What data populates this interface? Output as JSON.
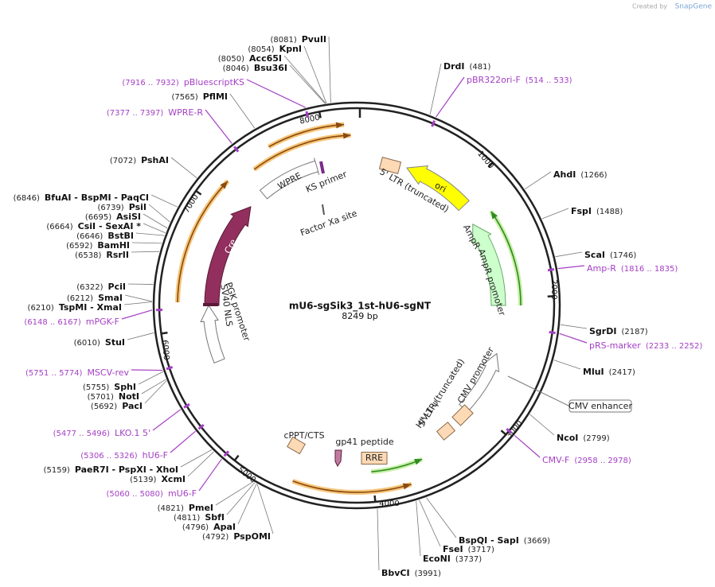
{
  "watermark": {
    "prefix": "Created by",
    "brand": "SnapGene"
  },
  "map": {
    "title": "mU6-sgSik3_1st-hU6-sgNT",
    "length": "8249 bp",
    "ticks": [
      1000,
      2000,
      3000,
      4000,
      5000,
      6000,
      7000,
      8000
    ]
  },
  "enzymes": [
    {
      "position": "(8081)",
      "name": "PvuII"
    },
    {
      "position": "(8054)",
      "name": "KpnI"
    },
    {
      "position": "(8050)",
      "name": "Acc65I"
    },
    {
      "position": "(8046)",
      "name": "Bsu36I"
    },
    {
      "position": "(7565)",
      "name": "PflMI"
    },
    {
      "position": "(7072)",
      "name": "PshAI"
    },
    {
      "position": "(6846)",
      "name": "BfuAI - BspMI - PaqCI"
    },
    {
      "position": "(6739)",
      "name": "PsiI"
    },
    {
      "position": "(6695)",
      "name": "AsiSI"
    },
    {
      "position": "(6664)",
      "name": "CsiI - SexAI *"
    },
    {
      "position": "(6646)",
      "name": "BstBI"
    },
    {
      "position": "(6592)",
      "name": "BamHI"
    },
    {
      "position": "(6538)",
      "name": "RsrII"
    },
    {
      "position": "(6322)",
      "name": "PciI"
    },
    {
      "position": "(6212)",
      "name": "SmaI"
    },
    {
      "position": "(6210)",
      "name": "TspMI - XmaI"
    },
    {
      "position": "(6010)",
      "name": "StuI"
    },
    {
      "position": "(5755)",
      "name": "SphI"
    },
    {
      "position": "(5701)",
      "name": "NotI"
    },
    {
      "position": "(5692)",
      "name": "PacI"
    },
    {
      "position": "(5159)",
      "name": "PaeR7I - PspXI - XhoI"
    },
    {
      "position": "(5139)",
      "name": "XcmI"
    },
    {
      "position": "(4821)",
      "name": "PmeI"
    },
    {
      "position": "(4811)",
      "name": "SbfI"
    },
    {
      "position": "(4796)",
      "name": "ApaI"
    },
    {
      "position": "(4792)",
      "name": "PspOMI"
    },
    {
      "position": "(481)",
      "name": "DrdI"
    },
    {
      "position": "(1266)",
      "name": "AhdI"
    },
    {
      "position": "(1488)",
      "name": "FspI"
    },
    {
      "position": "(1746)",
      "name": "ScaI"
    },
    {
      "position": "(2187)",
      "name": "SgrDI"
    },
    {
      "position": "(2417)",
      "name": "MluI"
    },
    {
      "position": "(2799)",
      "name": "NcoI"
    },
    {
      "position": "(3669)",
      "name": "BspQI - SapI"
    },
    {
      "position": "(3717)",
      "name": "FseI"
    },
    {
      "position": "(3737)",
      "name": "EcoNI"
    },
    {
      "position": "(3991)",
      "name": "BbvCI"
    }
  ],
  "primers": [
    {
      "range": "(7916 .. 7932)",
      "name": "pBluescriptKS"
    },
    {
      "range": "(7377 .. 7397)",
      "name": "WPRE-R"
    },
    {
      "range": "(6148 .. 6167)",
      "name": "mPGK-F"
    },
    {
      "range": "(5751 .. 5774)",
      "name": "MSCV-rev"
    },
    {
      "range": "(5477 .. 5496)",
      "name": "LKO.1 5'"
    },
    {
      "range": "(5306 .. 5326)",
      "name": "hU6-F"
    },
    {
      "range": "(5060 .. 5080)",
      "name": "mU6-F"
    },
    {
      "range": "(514 .. 533)",
      "name": "pBR322ori-F"
    },
    {
      "range": "(1816 .. 1835)",
      "name": "Amp-R"
    },
    {
      "range": "(2233 .. 2252)",
      "name": "pRS-marker"
    },
    {
      "range": "(2958 .. 2978)",
      "name": "CMV-F"
    }
  ],
  "features": [
    {
      "label": "5' LTR (truncated)"
    },
    {
      "label": "ori"
    },
    {
      "label": "AmpR"
    },
    {
      "label": "AmpR promoter"
    },
    {
      "label": "CMV promoter"
    },
    {
      "label": "CMV enhancer"
    },
    {
      "label": "5' LTR (truncated)"
    },
    {
      "label": "HIV-1 ψ"
    },
    {
      "label": "gp41 peptide"
    },
    {
      "label": "RRE"
    },
    {
      "label": "cPPT/CTS"
    },
    {
      "label": "PGK promoter"
    },
    {
      "label": "SV40 NLS"
    },
    {
      "label": "Cre"
    },
    {
      "label": "WPRE"
    },
    {
      "label": "KS primer"
    },
    {
      "label": "Factor Xa site"
    }
  ]
}
